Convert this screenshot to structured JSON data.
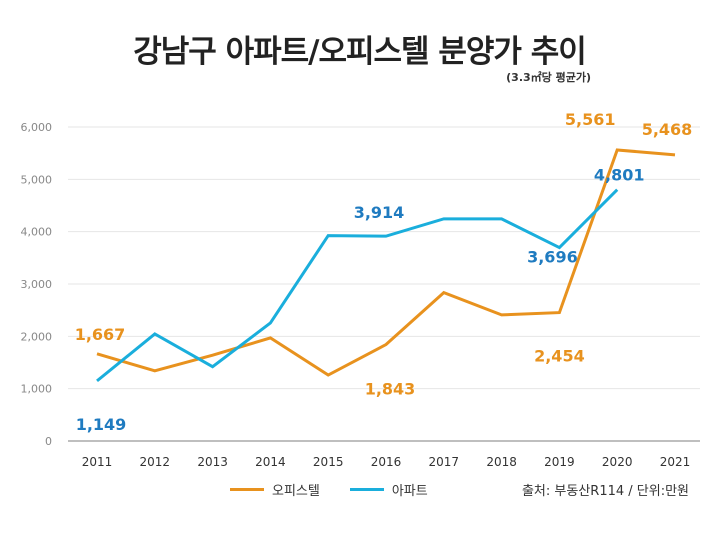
{
  "title": "강남구 아파트/오피스텔 분양가 추이",
  "subtitle": "(3.3㎡당 평균가)",
  "source": "출처: 부동산R114 / 단위:만원",
  "colors": {
    "officetel": "#E8921E",
    "apartment": "#1AAEDC",
    "apartment_label": "#1F7BC0"
  },
  "chart_data": {
    "type": "line",
    "title": "강남구 아파트/오피스텔 분양가 추이",
    "subtitle": "(3.3㎡당 평균가)",
    "x": [
      "2011",
      "2012",
      "2013",
      "2014",
      "2015",
      "2016",
      "2017",
      "2018",
      "2019",
      "2020",
      "2021"
    ],
    "yticks": [
      "0",
      "1,000",
      "2,000",
      "3,000",
      "4,000",
      "5,000",
      "6,000"
    ],
    "ylim": [
      0,
      6000
    ],
    "grid": true,
    "legend_placement": "bottom",
    "series": [
      {
        "name": "오피스텔",
        "color": "#E8921E",
        "values": [
          1667,
          1340,
          1640,
          1970,
          1260,
          1843,
          2835,
          2410,
          2454,
          5561,
          5468
        ]
      },
      {
        "name": "아파트",
        "color": "#1AAEDC",
        "values": [
          1149,
          2045,
          1420,
          2255,
          3925,
          3914,
          4245,
          4245,
          3696,
          4801,
          null
        ]
      }
    ],
    "data_labels": [
      {
        "series": 0,
        "index": 0,
        "text": "1,667"
      },
      {
        "series": 1,
        "index": 0,
        "text": "1,149"
      },
      {
        "series": 1,
        "index": 5,
        "text": "3,914"
      },
      {
        "series": 0,
        "index": 5,
        "text": "1,843"
      },
      {
        "series": 1,
        "index": 8,
        "text": "3,696"
      },
      {
        "series": 0,
        "index": 8,
        "text": "2,454"
      },
      {
        "series": 0,
        "index": 9,
        "text": "5,561"
      },
      {
        "series": 0,
        "index": 10,
        "text": "5,468"
      },
      {
        "series": 1,
        "index": 9,
        "text": "4,801"
      }
    ]
  }
}
